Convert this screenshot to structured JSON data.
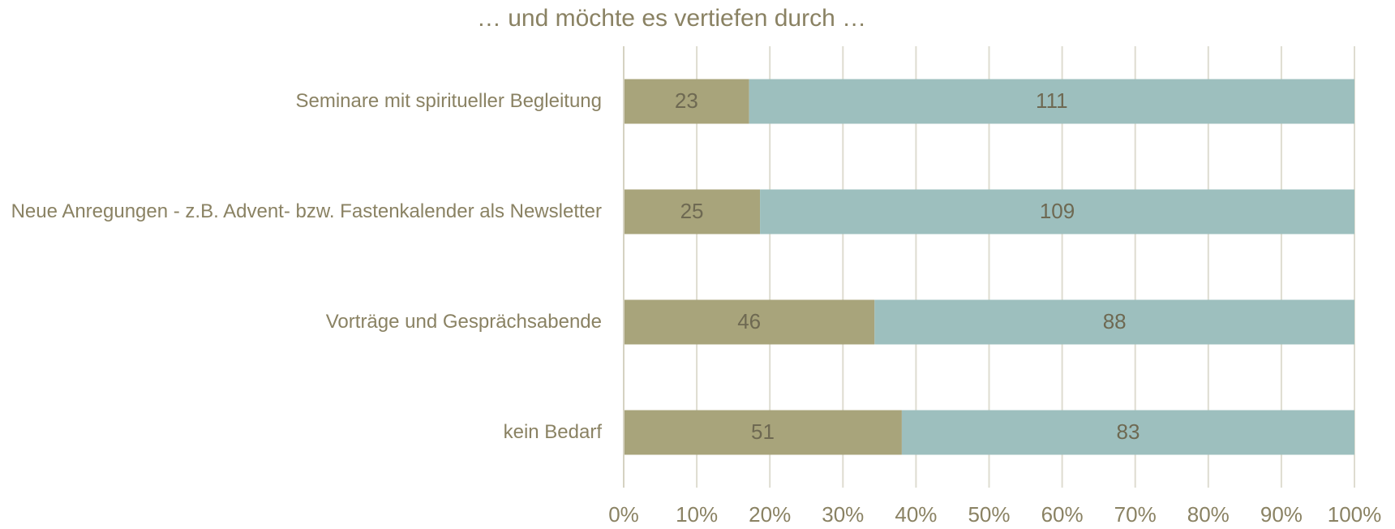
{
  "chart_data": {
    "type": "bar",
    "orientation": "horizontal",
    "stacking": "percent",
    "title": "… und möchte es vertiefen durch …",
    "categories": [
      "Seminare mit spiritueller Begleitung",
      "Neue Anregungen - z.B. Advent- bzw. Fastenkalender als Newsletter",
      "Vorträge und Gesprächsabende",
      "kein Bedarf"
    ],
    "series": [
      {
        "color": "#a8a47b",
        "values": [
          23,
          25,
          46,
          51
        ]
      },
      {
        "color": "#9dbfbe",
        "values": [
          111,
          109,
          88,
          83
        ]
      }
    ],
    "xlim": [
      0,
      100
    ],
    "xticks": [
      {
        "value": 0,
        "label": "0%"
      },
      {
        "value": 10,
        "label": "10%"
      },
      {
        "value": 20,
        "label": "20%"
      },
      {
        "value": 30,
        "label": "30%"
      },
      {
        "value": 40,
        "label": "40%"
      },
      {
        "value": 50,
        "label": "50%"
      },
      {
        "value": 60,
        "label": "60%"
      },
      {
        "value": 70,
        "label": "70%"
      },
      {
        "value": 80,
        "label": "80%"
      },
      {
        "value": 90,
        "label": "90%"
      },
      {
        "value": 100,
        "label": "100%"
      }
    ],
    "grid": true
  }
}
